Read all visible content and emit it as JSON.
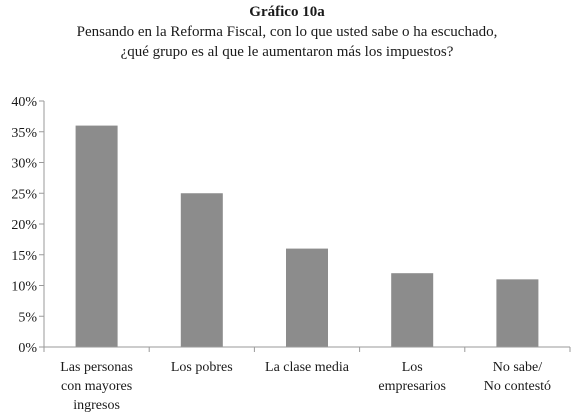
{
  "chart_data": {
    "type": "bar",
    "title": "Gráfico 10a",
    "subtitle_lines": [
      "Pensando en la Reforma Fiscal, con lo que usted sabe o ha escuchado,",
      "¿qué grupo es al que le aumentaron más los impuestos?"
    ],
    "categories": [
      [
        "Las personas",
        "con mayores",
        "ingresos"
      ],
      [
        "Los pobres"
      ],
      [
        "La clase media"
      ],
      [
        "Los",
        "empresarios"
      ],
      [
        "No sabe/",
        "No contestó"
      ]
    ],
    "values": [
      36,
      25,
      16,
      12,
      11
    ],
    "y_ticks": [
      "0%",
      "5%",
      "10%",
      "15%",
      "20%",
      "25%",
      "30%",
      "35%",
      "40%"
    ],
    "ylim": [
      0,
      40
    ],
    "grid": false,
    "bar_color": "#8c8c8c",
    "axis_color": "#9a9a9a"
  }
}
